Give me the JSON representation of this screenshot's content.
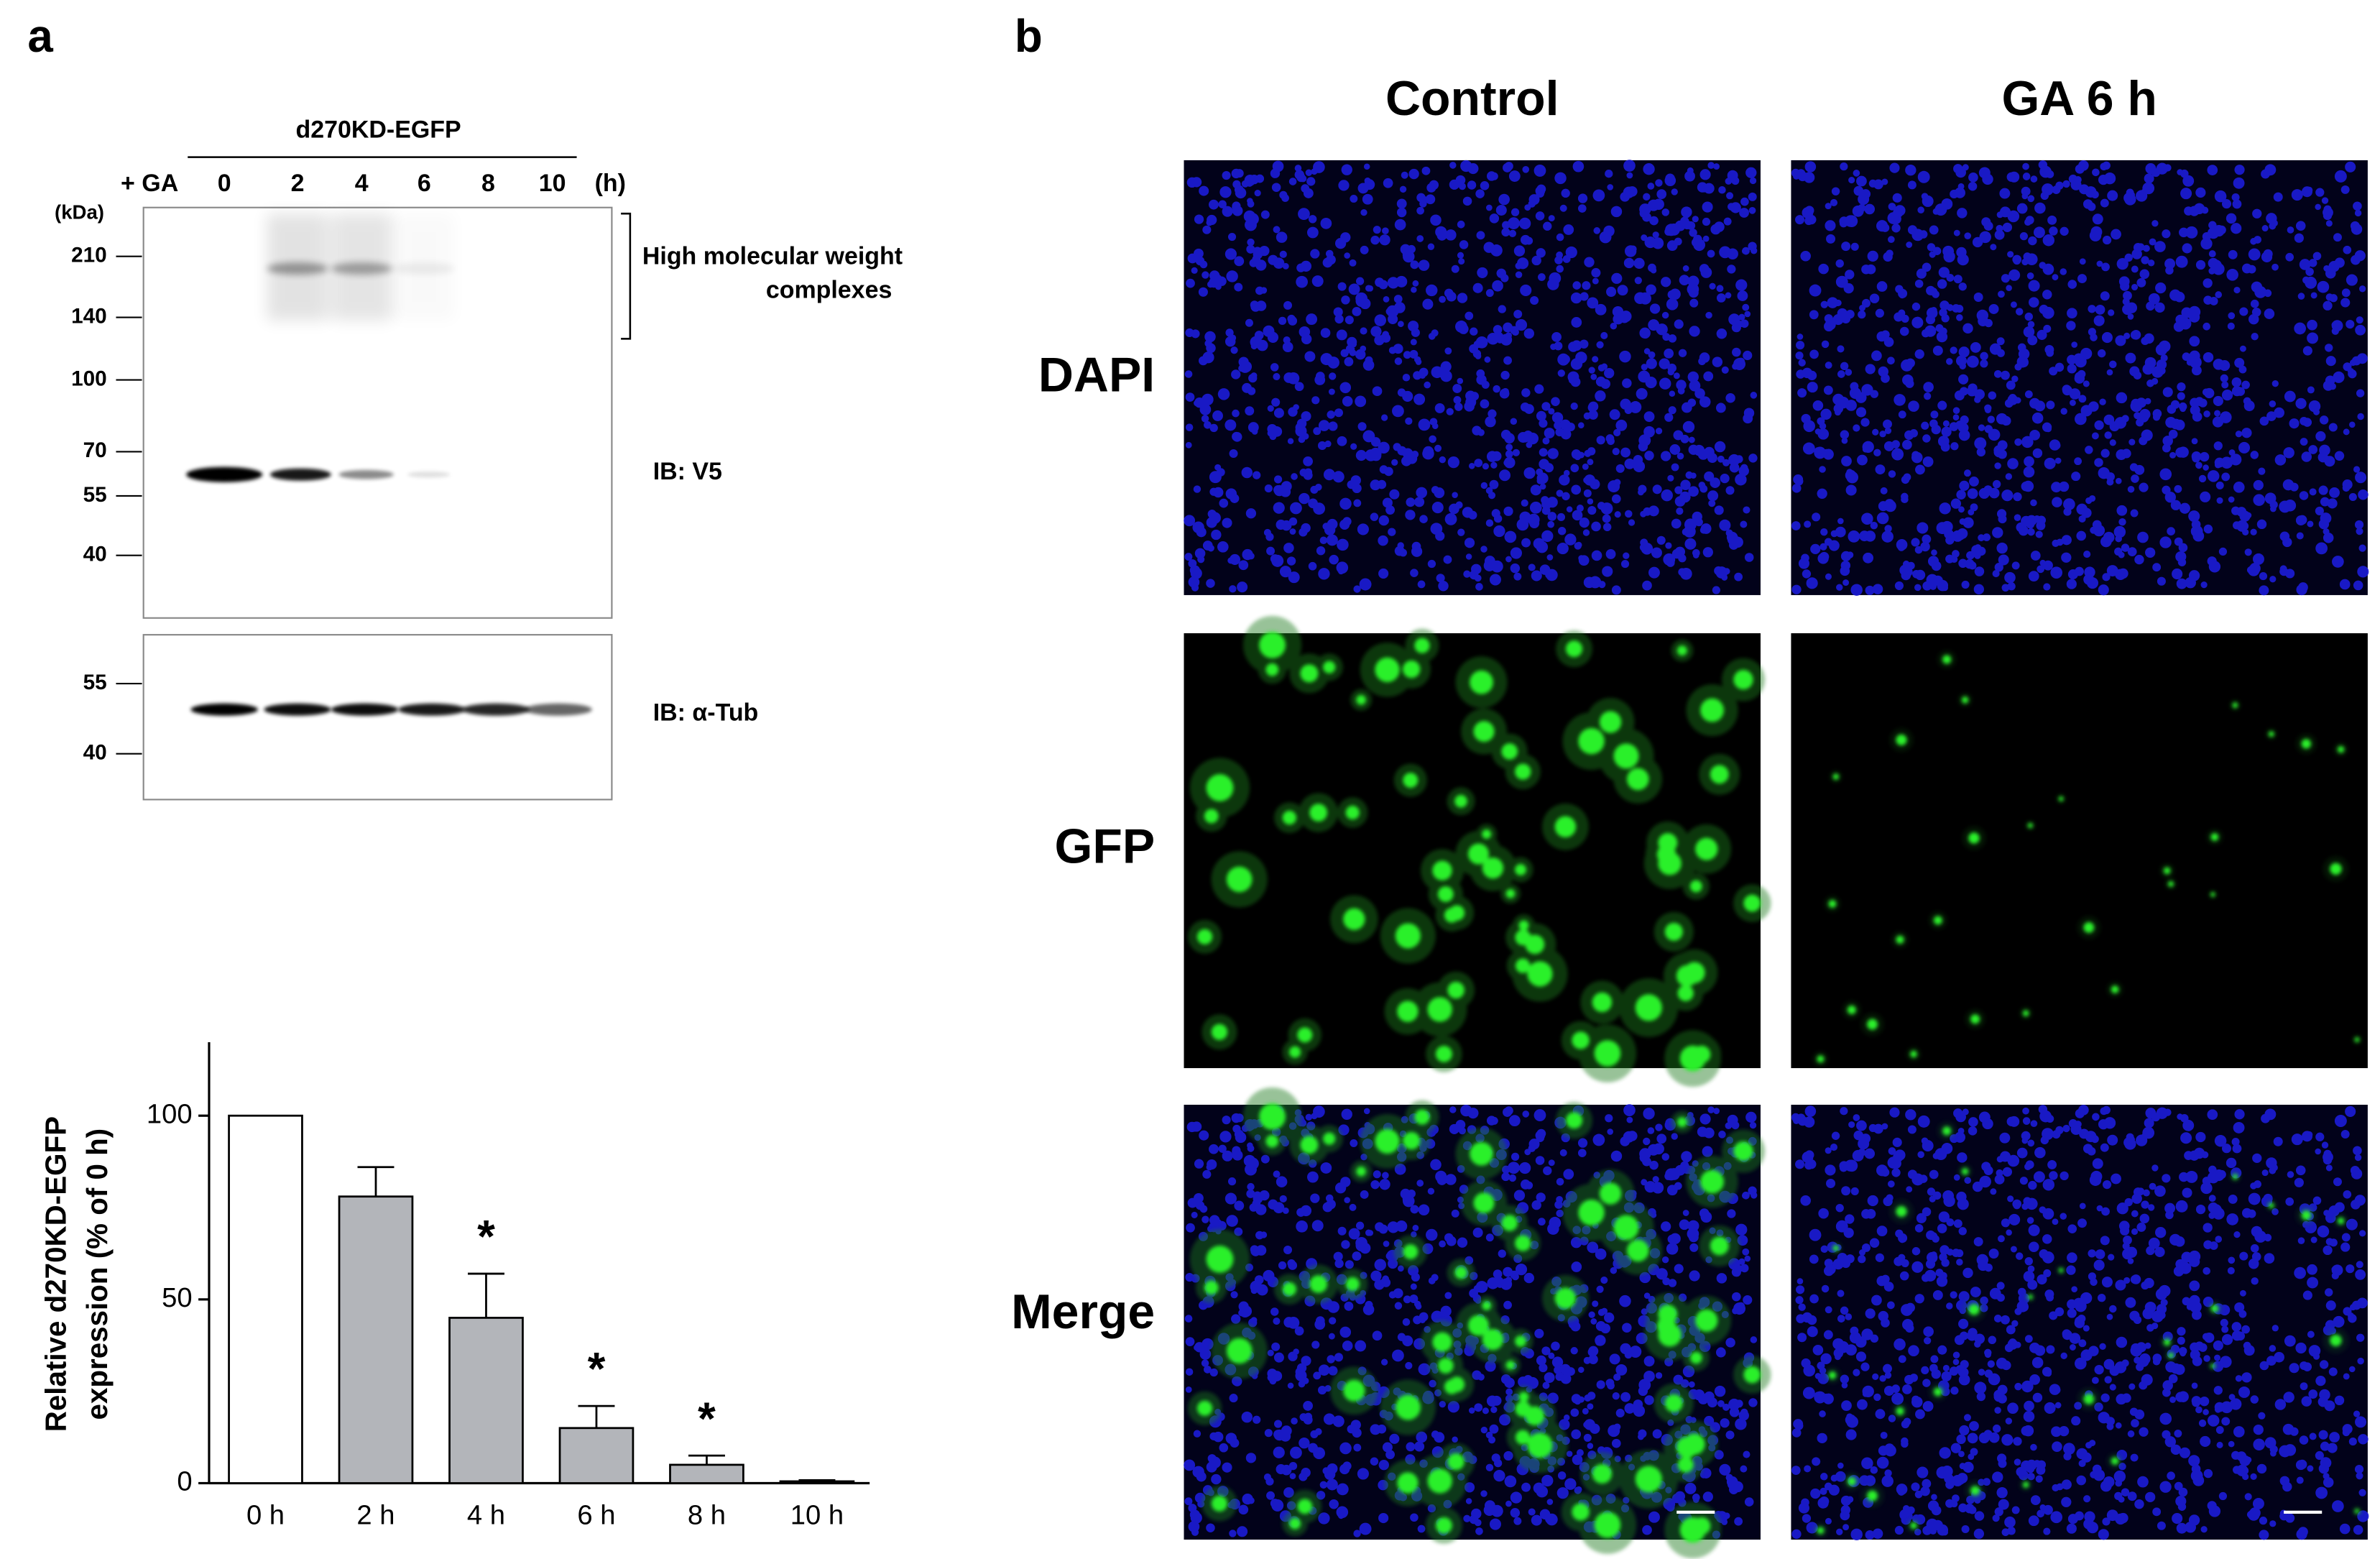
{
  "panel_a": {
    "label": "a",
    "blot": {
      "construct": "d270KD-EGFP",
      "treatment": "+ GA",
      "lanes": [
        "0",
        "2",
        "4",
        "6",
        "8",
        "10"
      ],
      "time_unit": "(h)",
      "size_unit": "(kDa)",
      "top_markers": [
        "210",
        "140",
        "100",
        "70",
        "55",
        "40"
      ],
      "bottom_markers": [
        "55",
        "40"
      ],
      "complex_label": [
        "High molecular weight",
        "complexes"
      ],
      "top_probe": "IB: V5",
      "bottom_probe": "IB: α-Tub"
    }
  },
  "chart_data": {
    "type": "bar",
    "y_label": [
      "Relative d270KD-EGFP",
      "expression (% of 0 h)"
    ],
    "categories": [
      "0 h",
      "2 h",
      "4 h",
      "6 h",
      "8 h",
      "10 h"
    ],
    "values": [
      100,
      78,
      45,
      15,
      5,
      0.5
    ],
    "errors": [
      0,
      8,
      12,
      6,
      2.5,
      0.3
    ],
    "colors": [
      "#ffffff",
      "#b3b5ba",
      "#b3b5ba",
      "#b3b5ba",
      "#b3b5ba",
      "#b3b5ba"
    ],
    "significance": [
      null,
      null,
      "*",
      "*",
      "*",
      null
    ],
    "ylim": [
      0,
      120
    ],
    "yticks": [
      0,
      50,
      100
    ]
  },
  "panel_b": {
    "label": "b",
    "columns": [
      "Control",
      "GA 6 h"
    ],
    "rows": [
      "DAPI",
      "GFP",
      "Merge"
    ]
  }
}
